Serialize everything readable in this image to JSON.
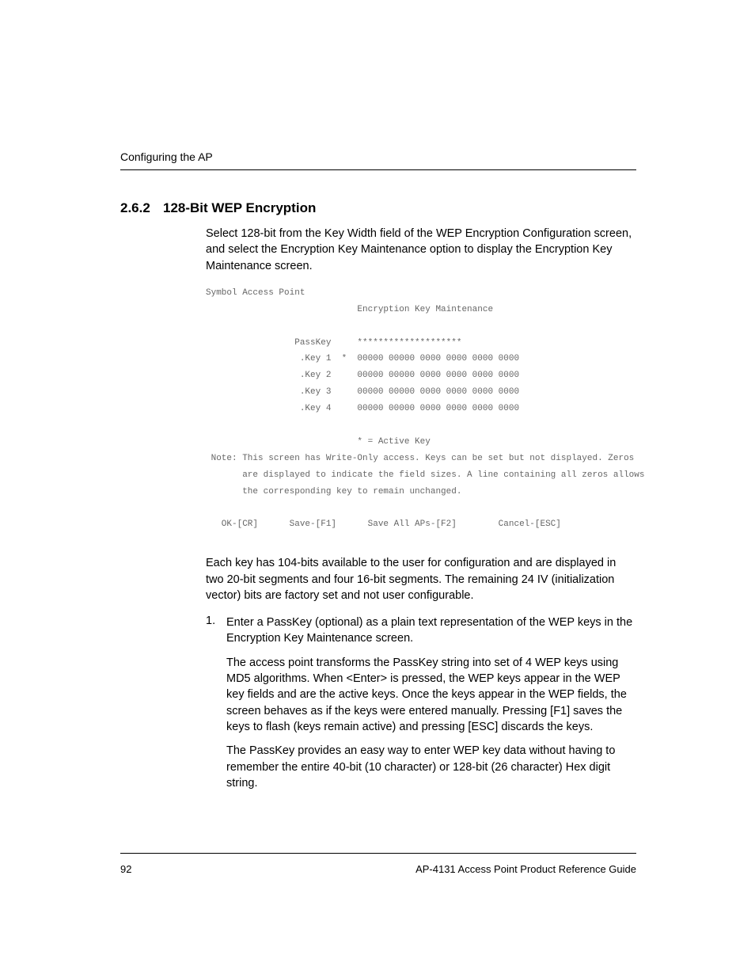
{
  "header": {
    "chapter": "Configuring the AP"
  },
  "section": {
    "number": "2.6.2",
    "title": "128-Bit WEP Encryption"
  },
  "intro_para": "Select 128-bit from the Key Width field of the WEP Encryption Configuration screen, and select the Encryption Key Maintenance option to display the Encryption Key Maintenance screen.",
  "terminal": {
    "line1": "Symbol Access Point",
    "line2": "                             Encryption Key Maintenance",
    "passkey_label": "                 PassKey     ********************",
    "key1": "                  .Key 1  *  00000 00000 0000 0000 0000 0000",
    "key2": "                  .Key 2     00000 00000 0000 0000 0000 0000",
    "key3": "                  .Key 3     00000 00000 0000 0000 0000 0000",
    "key4": "                  .Key 4     00000 00000 0000 0000 0000 0000",
    "active": "                             * = Active Key",
    "note1": " Note: This screen has Write-Only access. Keys can be set but not displayed. Zeros",
    "note2": "       are displayed to indicate the field sizes. A line containing all zeros allows",
    "note3": "       the corresponding key to remain unchanged.",
    "buttons": "   OK-[CR]      Save-[F1]      Save All APs-[F2]        Cancel-[ESC]"
  },
  "para2": "Each key has 104-bits available to the user for configuration and are displayed in two 20-bit segments and four 16-bit segments. The remaining 24 IV (initialization vector) bits are factory set and not user configurable.",
  "list": {
    "num1": "1.",
    "item1": "Enter a PassKey (optional) as a plain text representation of the WEP keys in the Encryption Key Maintenance screen.",
    "item1_sub1": "The access point transforms the PassKey string into set of 4 WEP keys using MD5 algorithms. When <Enter> is pressed, the WEP keys appear in the WEP key fields and are the active keys. Once the keys appear in the WEP fields, the screen behaves as if the keys were entered manually. Pressing [F1] saves the keys to flash (keys remain active) and pressing [ESC] discards the keys.",
    "item1_sub2": "The PassKey provides an easy way to enter WEP key data without having to remember the entire 40-bit (10 character) or 128-bit (26 character) Hex digit string."
  },
  "footer": {
    "page": "92",
    "doc": "AP-4131 Access Point Product Reference Guide"
  },
  "colors": {
    "text": "#000000",
    "terminal": "#666666",
    "background": "#ffffff"
  },
  "fonts": {
    "body": "Helvetica, Arial, sans-serif",
    "body_size": 14.5,
    "heading_size": 17,
    "terminal": "Courier New, Courier, monospace",
    "terminal_size": 11
  }
}
